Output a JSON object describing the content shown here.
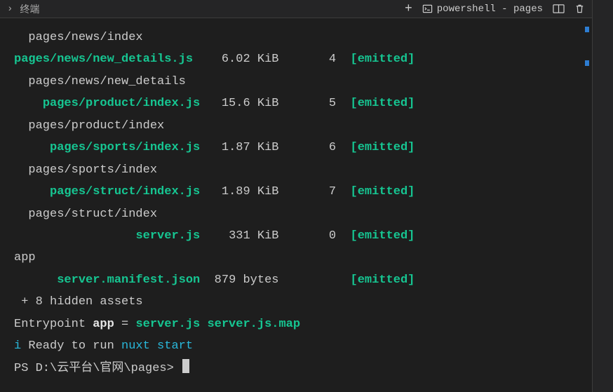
{
  "titlebar": {
    "chevron": "›",
    "title": "终端",
    "tab_label": "powershell - pages"
  },
  "rows": [
    {
      "file": "pages/news/index",
      "type": "plain"
    },
    {
      "file": "pages/news/new_details.js",
      "size": "6.02 KiB",
      "idx": "4",
      "status": "[emitted]",
      "type": "build",
      "pad": 0
    },
    {
      "file": "pages/news/new_details",
      "type": "plain"
    },
    {
      "file": "pages/product/index.js",
      "size": "15.6 KiB",
      "idx": "5",
      "status": "[emitted]",
      "type": "build",
      "pad": 4
    },
    {
      "file": "pages/product/index",
      "type": "plain"
    },
    {
      "file": "pages/sports/index.js",
      "size": "1.87 KiB",
      "idx": "6",
      "status": "[emitted]",
      "type": "build",
      "pad": 5
    },
    {
      "file": "pages/sports/index",
      "type": "plain"
    },
    {
      "file": "pages/struct/index.js",
      "size": "1.89 KiB",
      "idx": "7",
      "status": "[emitted]",
      "type": "build",
      "pad": 5
    },
    {
      "file": "pages/struct/index",
      "type": "plain"
    },
    {
      "file": "server.js",
      "size": "331 KiB",
      "idx": "0",
      "status": "[emitted]",
      "type": "build",
      "pad": 17
    },
    {
      "file": "app",
      "type": "plain-noindent"
    },
    {
      "file": "server.manifest.json",
      "size": "879 bytes",
      "idx": "",
      "status": "[emitted]",
      "type": "build",
      "pad": 6
    },
    {
      "file": " + 8 hidden assets",
      "type": "plain-noindent"
    }
  ],
  "entrypoint_line": {
    "prefix": "Entrypoint ",
    "app": "app",
    "eq": " = ",
    "files": "server.js server.js.map"
  },
  "ready_line": {
    "i": "i",
    "text": " Ready to run ",
    "cmd": "nuxt start"
  },
  "prompt": "PS D:\\云平台\\官网\\pages> ",
  "colors": {
    "bg": "#1e1e1e",
    "text": "#cccccc",
    "green": "#16c692",
    "cyan": "#29b8db",
    "white": "#e5e5e5"
  }
}
